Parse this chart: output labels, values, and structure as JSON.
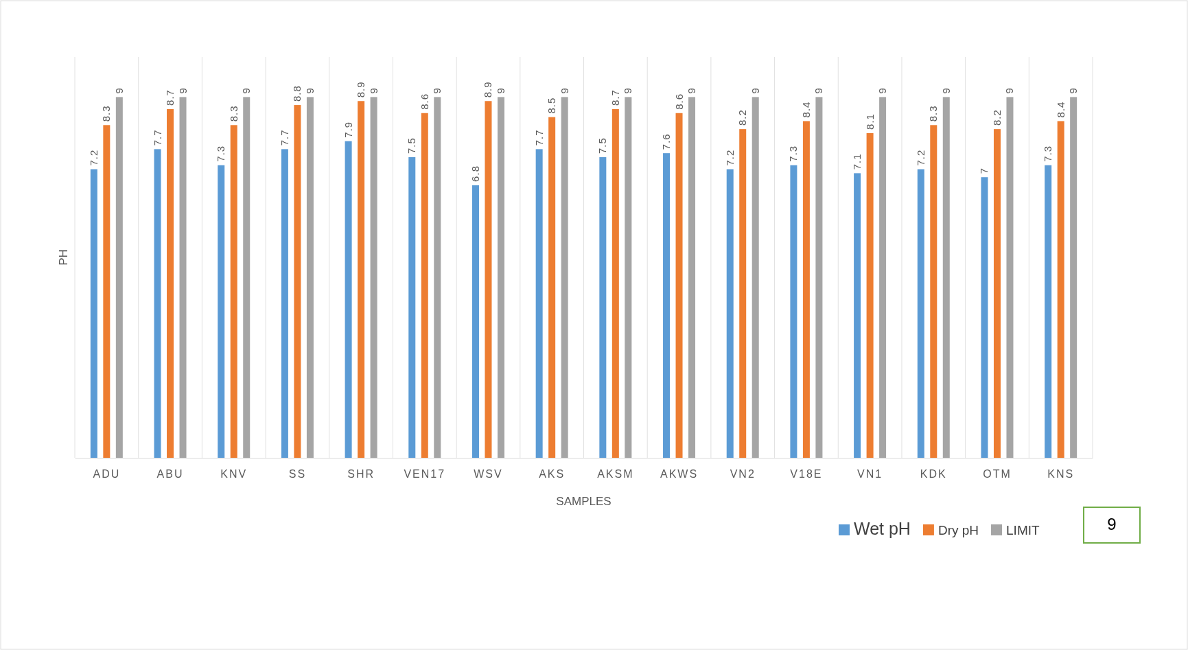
{
  "chart_data": {
    "type": "bar",
    "xlabel": "SAMPLES",
    "ylabel": "PH",
    "categories": [
      "ADU",
      "ABU",
      "KNV",
      "SS",
      "SHR",
      "VEN17",
      "WSV",
      "AKS",
      "AKSM",
      "AKWS",
      "VN2",
      "V18E",
      "VN1",
      "KDK",
      "OTM",
      "KNS"
    ],
    "series": [
      {
        "name": "Wet pH",
        "color": "#5b9bd5",
        "values": [
          7.2,
          7.7,
          7.3,
          7.7,
          7.9,
          7.5,
          6.8,
          7.7,
          7.5,
          7.6,
          7.2,
          7.3,
          7.1,
          7.2,
          7,
          7.3
        ]
      },
      {
        "name": "Dry pH",
        "color": "#ed7d31",
        "values": [
          8.3,
          8.7,
          8.3,
          8.8,
          8.9,
          8.6,
          8.9,
          8.5,
          8.7,
          8.6,
          8.2,
          8.4,
          8.1,
          8.3,
          8.2,
          8.4
        ]
      },
      {
        "name": "LIMIT",
        "color": "#a5a5a5",
        "values": [
          9,
          9,
          9,
          9,
          9,
          9,
          9,
          9,
          9,
          9,
          9,
          9,
          9,
          9,
          9,
          9
        ]
      }
    ],
    "ylim": [
      0,
      10
    ],
    "data_labels": true,
    "grid": "x",
    "legend": "bottom right",
    "tick_labels": "x",
    "annotations": [
      "9"
    ]
  }
}
